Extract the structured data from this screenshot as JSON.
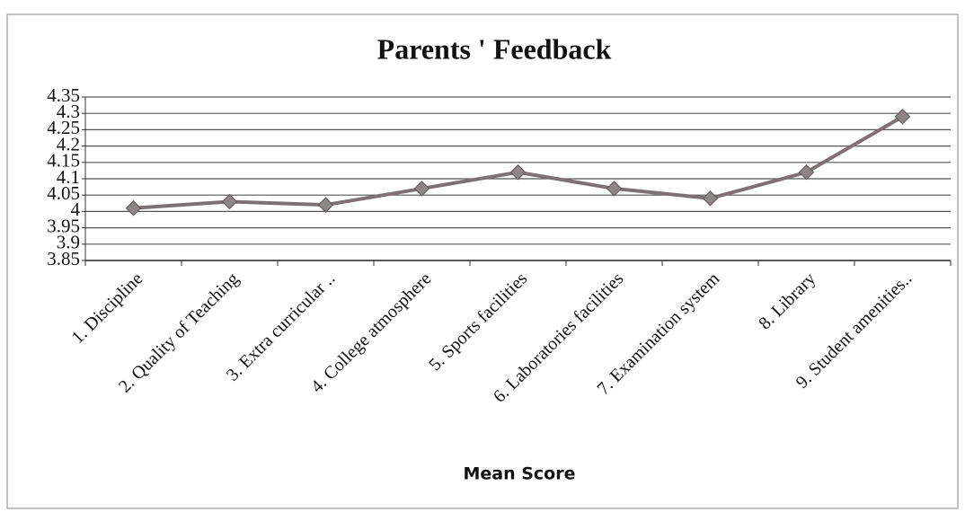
{
  "chart_data": {
    "type": "line",
    "title": "Parents ' Feedback",
    "x_label": "Mean Score",
    "categories": [
      "1. Discipline",
      "2. Quality of Teaching",
      "3. Extra curricular ..",
      "4. College atmosphere",
      "5. Sports facilities",
      "6. Laboratories facilities",
      "7. Examination system",
      "8. Library",
      "9. Student amenities.."
    ],
    "values": [
      4.01,
      4.03,
      4.02,
      4.07,
      4.12,
      4.07,
      4.04,
      4.12,
      4.29
    ],
    "color": "#7d7174",
    "ylim": [
      3.85,
      4.35
    ],
    "yticks": [
      3.85,
      3.9,
      3.95,
      4,
      4.05,
      4.1,
      4.15,
      4.2,
      4.25,
      4.3,
      4.35
    ],
    "grid": true
  }
}
